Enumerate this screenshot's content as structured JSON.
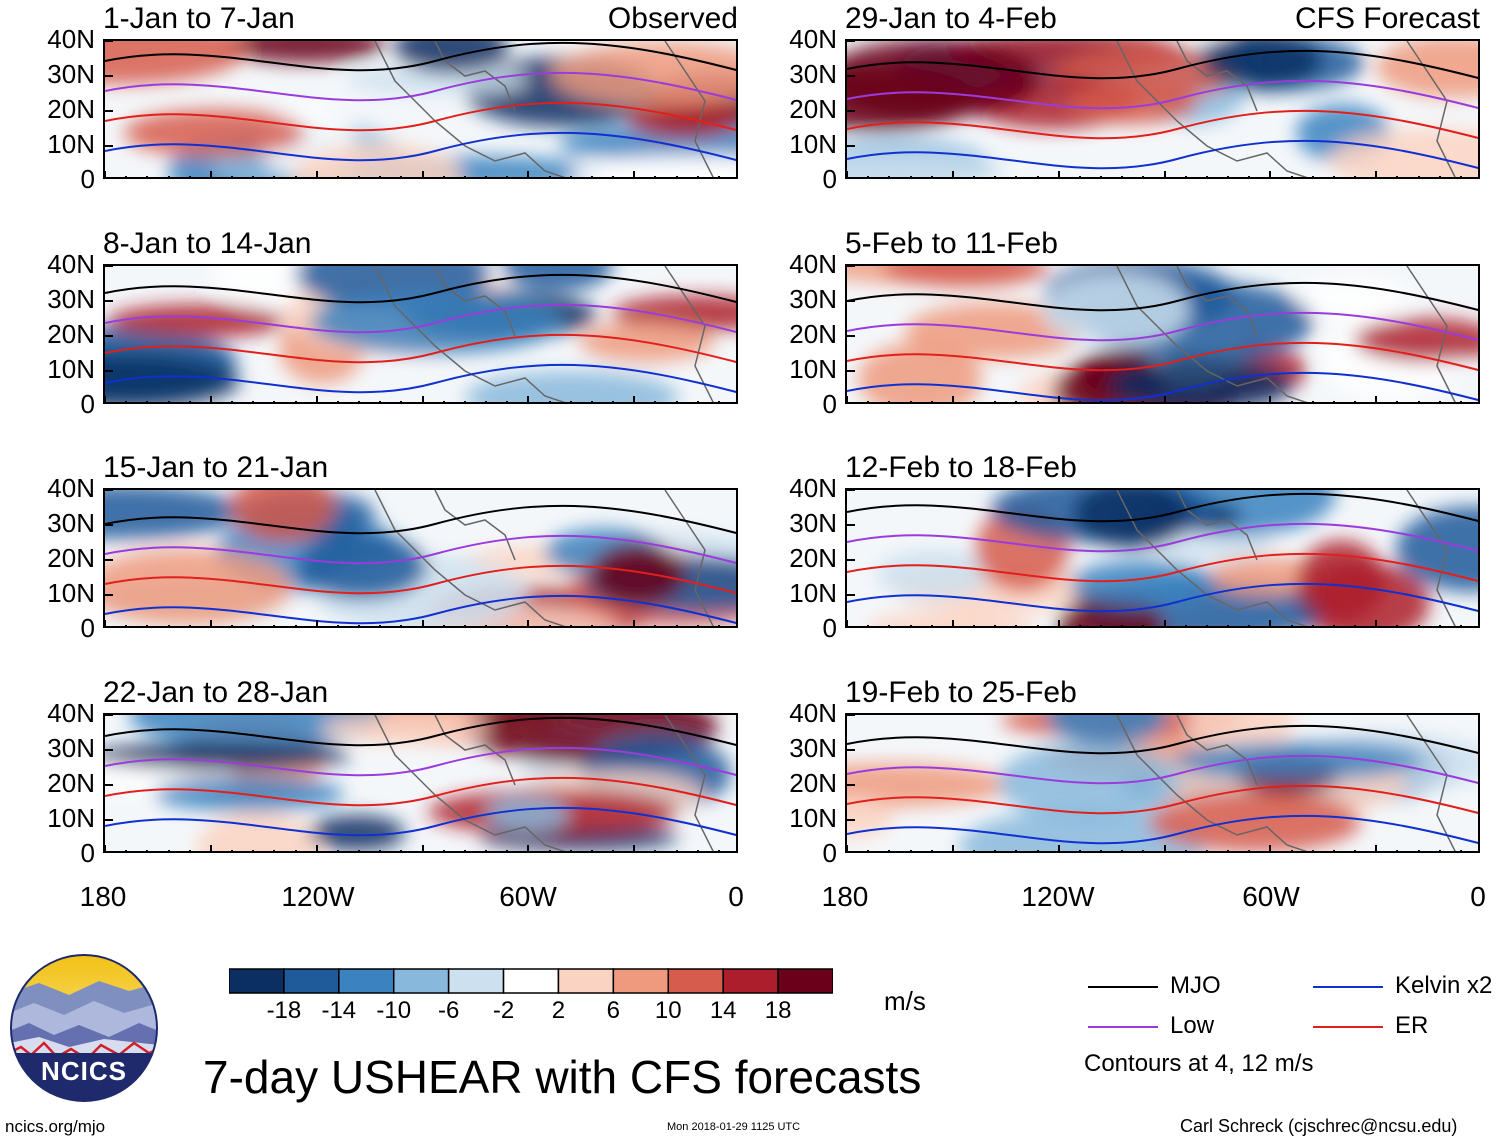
{
  "panels": [
    {
      "title": "1-Jan to 7-Jan",
      "tag": "Observed"
    },
    {
      "title": "8-Jan to 14-Jan",
      "tag": ""
    },
    {
      "title": "15-Jan to 21-Jan",
      "tag": ""
    },
    {
      "title": "22-Jan to 28-Jan",
      "tag": ""
    },
    {
      "title": "29-Jan to 4-Feb",
      "tag": "CFS Forecast"
    },
    {
      "title": "5-Feb to 11-Feb",
      "tag": ""
    },
    {
      "title": "12-Feb to 18-Feb",
      "tag": ""
    },
    {
      "title": "19-Feb to 25-Feb",
      "tag": ""
    }
  ],
  "lat_labels": [
    "40N",
    "30N",
    "20N",
    "10N",
    "0"
  ],
  "lon_labels": [
    "180",
    "120W",
    "60W",
    "0"
  ],
  "colorbar": {
    "labels": [
      "-18",
      "-14",
      "-10",
      "-6",
      "-2",
      "2",
      "6",
      "10",
      "14",
      "18"
    ],
    "colors": [
      "#0b2f63",
      "#1f5a9b",
      "#3b82c0",
      "#88b9dc",
      "#cde0ef",
      "#ffffff",
      "#fbd3c2",
      "#ef9a7e",
      "#d65c4e",
      "#ad1e2c",
      "#6a0019"
    ],
    "units": "m/s"
  },
  "legend": {
    "items": [
      {
        "label": "MJO",
        "color": "#000000"
      },
      {
        "label": "Kelvin x2",
        "color": "#1030d0"
      },
      {
        "label": "Low",
        "color": "#9a3cdc"
      },
      {
        "label": "ER",
        "color": "#e0201c"
      }
    ],
    "note": "Contours at 4, 12 m/s"
  },
  "logo_text": "NCICS",
  "main_title": "7-day USHEAR with CFS forecasts",
  "footer": {
    "left": "ncics.org/mjo",
    "center": "Mon 2018-01-29 1125 UTC",
    "right": "Carl Schreck (cjschrec@ncsu.edu)"
  }
}
